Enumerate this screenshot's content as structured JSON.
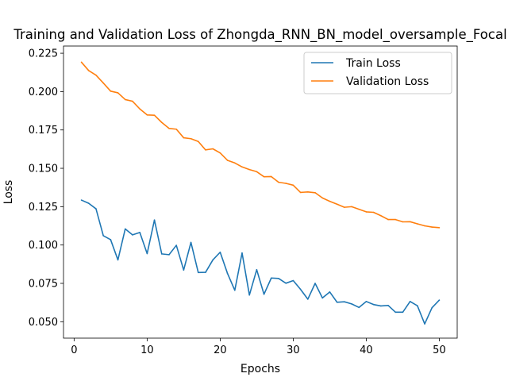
{
  "chart_data": {
    "type": "line",
    "title": "Training and Validation Loss of Zhongda_RNN_BN_model_oversample_Focal",
    "xlabel": "Epochs",
    "ylabel": "Loss",
    "xlim": [
      -1.45,
      52.45
    ],
    "ylim": [
      0.0393,
      0.2297
    ],
    "xticks": [
      0,
      10,
      20,
      30,
      40,
      50
    ],
    "yticks": [
      0.05,
      0.075,
      0.1,
      0.125,
      0.15,
      0.175,
      0.2,
      0.225
    ],
    "ytick_labels": [
      "0.050",
      "0.075",
      "0.100",
      "0.125",
      "0.150",
      "0.175",
      "0.200",
      "0.225"
    ],
    "grid": false,
    "legend_position": "upper right",
    "x": [
      1,
      2,
      3,
      4,
      5,
      6,
      7,
      8,
      9,
      10,
      11,
      12,
      13,
      14,
      15,
      16,
      17,
      18,
      19,
      20,
      21,
      22,
      23,
      24,
      25,
      26,
      27,
      28,
      29,
      30,
      31,
      32,
      33,
      34,
      35,
      36,
      37,
      38,
      39,
      40,
      41,
      42,
      43,
      44,
      45,
      46,
      47,
      48,
      49,
      50
    ],
    "series": [
      {
        "name": "Train Loss",
        "color": "#1f77b4",
        "values": [
          0.1293,
          0.1272,
          0.1236,
          0.1061,
          0.1035,
          0.0903,
          0.1105,
          0.1066,
          0.1082,
          0.0944,
          0.1163,
          0.0942,
          0.0937,
          0.0998,
          0.0837,
          0.1017,
          0.0821,
          0.0822,
          0.0903,
          0.0953,
          0.0815,
          0.0705,
          0.0948,
          0.0674,
          0.0839,
          0.0679,
          0.0785,
          0.0782,
          0.0751,
          0.0768,
          0.0711,
          0.0647,
          0.075,
          0.0655,
          0.0694,
          0.0627,
          0.063,
          0.0616,
          0.0593,
          0.0632,
          0.0612,
          0.0603,
          0.0606,
          0.0562,
          0.0562,
          0.0632,
          0.0604,
          0.0486,
          0.0591,
          0.0641
        ]
      },
      {
        "name": "Validation Loss",
        "color": "#ff7f0e",
        "values": [
          0.2192,
          0.2137,
          0.2107,
          0.2056,
          0.2003,
          0.1992,
          0.1948,
          0.1937,
          0.1887,
          0.1848,
          0.1846,
          0.1799,
          0.176,
          0.1755,
          0.1699,
          0.1693,
          0.1675,
          0.162,
          0.1627,
          0.16,
          0.1552,
          0.1535,
          0.1509,
          0.1492,
          0.1478,
          0.1445,
          0.1446,
          0.1409,
          0.1402,
          0.139,
          0.1343,
          0.1346,
          0.1341,
          0.1307,
          0.1285,
          0.1266,
          0.1246,
          0.125,
          0.1233,
          0.1216,
          0.1213,
          0.1191,
          0.1166,
          0.1166,
          0.1151,
          0.1152,
          0.1138,
          0.1125,
          0.1117,
          0.1113
        ]
      }
    ]
  }
}
